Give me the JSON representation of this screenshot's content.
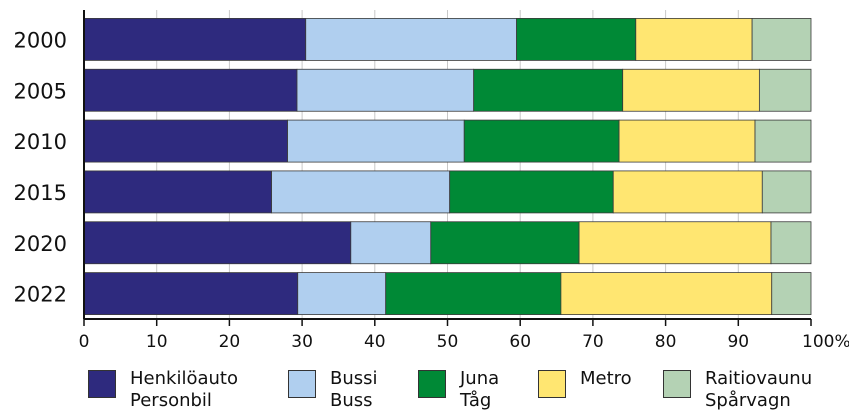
{
  "chart_data": {
    "type": "bar",
    "orientation": "horizontal",
    "stacked": true,
    "categories": [
      "2000",
      "2005",
      "2010",
      "2015",
      "2020",
      "2022"
    ],
    "series": [
      {
        "name_fi": "Henkilöauto",
        "name_sv": "Personbil",
        "color": "#2e2a7e",
        "values": [
          30.5,
          29.3,
          28.0,
          25.8,
          36.7,
          29.4
        ]
      },
      {
        "name_fi": "Bussi",
        "name_sv": "Buss",
        "color": "#b0cfef",
        "values": [
          29.0,
          24.3,
          24.3,
          24.5,
          11.0,
          12.1
        ]
      },
      {
        "name_fi": "Juna",
        "name_sv": "Tåg",
        "color": "#008936",
        "values": [
          16.4,
          20.5,
          21.3,
          22.5,
          20.4,
          24.1
        ]
      },
      {
        "name_fi": "Metro",
        "name_sv": "Metro",
        "color": "#ffe671",
        "values": [
          16.0,
          18.8,
          18.7,
          20.5,
          26.4,
          29.0
        ]
      },
      {
        "name_fi": "Raitiovaunu",
        "name_sv": "Spårvagn",
        "color": "#b4d2b4",
        "values": [
          8.1,
          7.1,
          7.7,
          6.7,
          5.5,
          5.4
        ]
      }
    ],
    "x_ticks": [
      "0",
      "10",
      "20",
      "30",
      "40",
      "50",
      "60",
      "70",
      "80",
      "90",
      "100%"
    ],
    "xlim": [
      0,
      100
    ],
    "grid": true,
    "legend_position": "bottom"
  }
}
